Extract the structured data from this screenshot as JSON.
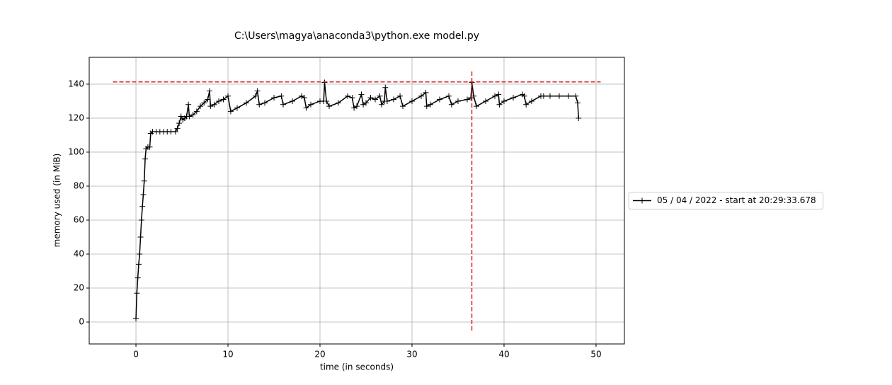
{
  "chart_data": {
    "type": "line",
    "title": "C:\\Users\\magya\\anaconda3\\python.exe model.py",
    "x_label": "time (in seconds)",
    "y_label": "memory used (in MiB)",
    "x": [
      0,
      0.1,
      0.2,
      0.3,
      0.4,
      0.5,
      0.6,
      0.7,
      0.8,
      0.9,
      1.0,
      1.1,
      1.3,
      1.5,
      1.6,
      1.8,
      2.2,
      2.6,
      3.0,
      3.4,
      3.8,
      4.3,
      4.5,
      4.7,
      4.9,
      5.1,
      5.3,
      5.5,
      5.7,
      5.8,
      6.2,
      6.6,
      7.0,
      7.4,
      7.8,
      8.0,
      8.1,
      8.5,
      9.0,
      9.5,
      10,
      10.3,
      11,
      12,
      13,
      13.2,
      13.4,
      14,
      15,
      15.8,
      16,
      17,
      18,
      18.3,
      18.5,
      19,
      20,
      20.4,
      20.5,
      20.7,
      21,
      22,
      23,
      23.5,
      23.7,
      24,
      24.5,
      24.7,
      25,
      25.5,
      26,
      26.5,
      26.7,
      27,
      27.1,
      27.3,
      28,
      28.7,
      29,
      30,
      31,
      31.5,
      31.6,
      32,
      33,
      34,
      34.3,
      35,
      36,
      36.4,
      36.5,
      36.7,
      37,
      38,
      39,
      39.4,
      39.5,
      40,
      41,
      42,
      42.2,
      42.4,
      43,
      44,
      44.3,
      45,
      46,
      47,
      47.8,
      48.0,
      48.1
    ],
    "series": [
      {
        "name": "05 / 04 / 2022 - start at 20:29:33.678",
        "color": "#000000",
        "values": [
          2,
          17,
          26,
          34,
          40,
          50,
          60,
          68,
          75,
          83,
          96,
          102,
          103,
          103,
          111,
          112,
          112,
          112,
          112,
          112,
          112,
          112,
          114,
          117,
          121,
          119,
          120,
          121,
          128,
          121,
          122,
          124,
          127,
          129,
          131,
          136,
          127,
          128,
          130,
          131,
          133,
          124,
          126,
          129,
          133,
          136,
          128,
          129,
          132,
          133,
          128,
          130,
          133,
          132,
          126,
          128,
          130,
          130,
          141,
          130,
          127,
          129,
          133,
          132,
          126,
          127,
          134,
          128,
          129,
          132,
          131,
          133,
          128,
          130,
          138,
          130,
          131,
          133,
          127,
          130,
          133,
          135,
          127,
          128,
          131,
          133,
          128,
          130,
          131,
          132,
          141,
          133,
          127,
          130,
          133,
          134,
          128,
          130,
          132,
          134,
          133,
          128,
          130,
          133,
          133,
          133,
          133,
          133,
          133,
          129,
          120
        ]
      }
    ],
    "reference_lines": [
      {
        "orientation": "horizontal",
        "value": 141.3,
        "from": -2.5,
        "to": 50.5,
        "color": "#d62728"
      },
      {
        "orientation": "vertical",
        "value": 36.5,
        "from": -5,
        "to": 148,
        "color": "#d62728"
      }
    ],
    "xlim": [
      -5.08,
      53.08
    ],
    "ylim": [
      -12.9,
      155.8
    ],
    "xticks": [
      0,
      10,
      20,
      30,
      40,
      50
    ],
    "yticks": [
      0,
      20,
      40,
      60,
      80,
      100,
      120,
      140
    ],
    "grid": true,
    "legend": "right"
  }
}
